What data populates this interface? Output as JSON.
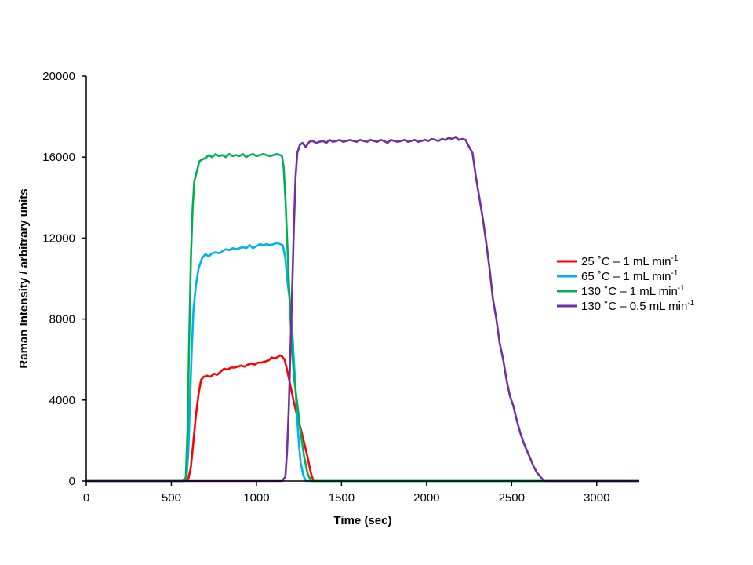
{
  "chart_data": {
    "type": "line",
    "title": "",
    "xlabel": "Time (sec)",
    "ylabel": "Raman Intensity / arbitrary units",
    "xlim": [
      0,
      3250
    ],
    "ylim": [
      0,
      20000
    ],
    "xticks": [
      0,
      500,
      1000,
      1500,
      2000,
      2500,
      3000
    ],
    "yticks": [
      0,
      4000,
      8000,
      12000,
      16000,
      20000
    ],
    "grid": false,
    "legend_position": "right",
    "series": [
      {
        "name": "25 °C – 1 mL min-1",
        "label_main": "25 ˚C – 1 mL min",
        "label_sup": "-1",
        "color": "#ff0000",
        "points": [
          [
            0,
            0
          ],
          [
            560,
            0
          ],
          [
            600,
            100
          ],
          [
            615,
            700
          ],
          [
            630,
            2000
          ],
          [
            645,
            3300
          ],
          [
            660,
            4300
          ],
          [
            675,
            5000
          ],
          [
            690,
            5150
          ],
          [
            710,
            5200
          ],
          [
            730,
            5150
          ],
          [
            750,
            5300
          ],
          [
            770,
            5250
          ],
          [
            790,
            5400
          ],
          [
            810,
            5550
          ],
          [
            830,
            5500
          ],
          [
            850,
            5600
          ],
          [
            870,
            5600
          ],
          [
            890,
            5650
          ],
          [
            910,
            5700
          ],
          [
            930,
            5650
          ],
          [
            950,
            5750
          ],
          [
            970,
            5800
          ],
          [
            990,
            5750
          ],
          [
            1010,
            5850
          ],
          [
            1030,
            5850
          ],
          [
            1050,
            5900
          ],
          [
            1070,
            5950
          ],
          [
            1090,
            6100
          ],
          [
            1110,
            6050
          ],
          [
            1130,
            6150
          ],
          [
            1140,
            6200
          ],
          [
            1150,
            6150
          ],
          [
            1165,
            6000
          ],
          [
            1180,
            5500
          ],
          [
            1200,
            4700
          ],
          [
            1220,
            3900
          ],
          [
            1240,
            3200
          ],
          [
            1260,
            2600
          ],
          [
            1280,
            1900
          ],
          [
            1300,
            1200
          ],
          [
            1320,
            400
          ],
          [
            1335,
            0
          ],
          [
            3250,
            0
          ]
        ]
      },
      {
        "name": "65 °C – 1 mL min-1",
        "label_main": "65 ˚C – 1 mL min",
        "label_sup": "-1",
        "color": "#00b0f0",
        "points": [
          [
            0,
            0
          ],
          [
            575,
            0
          ],
          [
            590,
            200
          ],
          [
            600,
            1500
          ],
          [
            610,
            4000
          ],
          [
            620,
            6500
          ],
          [
            630,
            8500
          ],
          [
            645,
            9700
          ],
          [
            660,
            10500
          ],
          [
            680,
            11000
          ],
          [
            700,
            11200
          ],
          [
            720,
            11100
          ],
          [
            740,
            11250
          ],
          [
            760,
            11300
          ],
          [
            780,
            11250
          ],
          [
            800,
            11350
          ],
          [
            820,
            11450
          ],
          [
            840,
            11400
          ],
          [
            860,
            11500
          ],
          [
            880,
            11450
          ],
          [
            900,
            11500
          ],
          [
            920,
            11550
          ],
          [
            940,
            11500
          ],
          [
            960,
            11650
          ],
          [
            980,
            11500
          ],
          [
            1000,
            11600
          ],
          [
            1020,
            11700
          ],
          [
            1040,
            11650
          ],
          [
            1060,
            11700
          ],
          [
            1080,
            11650
          ],
          [
            1100,
            11700
          ],
          [
            1120,
            11750
          ],
          [
            1140,
            11700
          ],
          [
            1155,
            11650
          ],
          [
            1170,
            11000
          ],
          [
            1180,
            10000
          ],
          [
            1195,
            9000
          ],
          [
            1210,
            7500
          ],
          [
            1220,
            6000
          ],
          [
            1230,
            4500
          ],
          [
            1240,
            3000
          ],
          [
            1250,
            1800
          ],
          [
            1260,
            900
          ],
          [
            1275,
            300
          ],
          [
            1290,
            0
          ],
          [
            3250,
            0
          ]
        ]
      },
      {
        "name": "130 °C – 1 mL min-1",
        "label_main": "130 ˚C – 1 mL min",
        "label_sup": "-1",
        "color": "#00b050",
        "points": [
          [
            0,
            0
          ],
          [
            575,
            0
          ],
          [
            585,
            200
          ],
          [
            595,
            2500
          ],
          [
            605,
            7000
          ],
          [
            615,
            11000
          ],
          [
            625,
            13500
          ],
          [
            635,
            14800
          ],
          [
            650,
            15300
          ],
          [
            665,
            15800
          ],
          [
            685,
            15900
          ],
          [
            700,
            15950
          ],
          [
            720,
            16100
          ],
          [
            740,
            16000
          ],
          [
            760,
            16150
          ],
          [
            780,
            16050
          ],
          [
            800,
            16100
          ],
          [
            820,
            16000
          ],
          [
            840,
            16150
          ],
          [
            860,
            16050
          ],
          [
            880,
            16100
          ],
          [
            900,
            16050
          ],
          [
            920,
            16150
          ],
          [
            940,
            16000
          ],
          [
            960,
            16100
          ],
          [
            980,
            16150
          ],
          [
            1000,
            16050
          ],
          [
            1020,
            16100
          ],
          [
            1040,
            16150
          ],
          [
            1060,
            16100
          ],
          [
            1080,
            16050
          ],
          [
            1100,
            16100
          ],
          [
            1120,
            16150
          ],
          [
            1140,
            16100
          ],
          [
            1150,
            16050
          ],
          [
            1160,
            15500
          ],
          [
            1170,
            14000
          ],
          [
            1180,
            12000
          ],
          [
            1190,
            10000
          ],
          [
            1200,
            8000
          ],
          [
            1210,
            6500
          ],
          [
            1220,
            5200
          ],
          [
            1240,
            3800
          ],
          [
            1260,
            2400
          ],
          [
            1280,
            1200
          ],
          [
            1300,
            400
          ],
          [
            1320,
            0
          ],
          [
            3250,
            0
          ]
        ]
      },
      {
        "name": "130 °C – 0.5 mL min-1",
        "label_main": "130 ˚C – 0.5 mL min",
        "label_sup": "-1",
        "color": "#7030a0",
        "points": [
          [
            0,
            0
          ],
          [
            1150,
            0
          ],
          [
            1170,
            200
          ],
          [
            1180,
            1500
          ],
          [
            1190,
            3500
          ],
          [
            1200,
            6500
          ],
          [
            1210,
            9500
          ],
          [
            1220,
            12500
          ],
          [
            1230,
            15000
          ],
          [
            1240,
            16200
          ],
          [
            1255,
            16600
          ],
          [
            1270,
            16700
          ],
          [
            1290,
            16500
          ],
          [
            1310,
            16750
          ],
          [
            1330,
            16800
          ],
          [
            1350,
            16700
          ],
          [
            1370,
            16750
          ],
          [
            1390,
            16800
          ],
          [
            1410,
            16700
          ],
          [
            1430,
            16850
          ],
          [
            1450,
            16750
          ],
          [
            1470,
            16800
          ],
          [
            1490,
            16850
          ],
          [
            1510,
            16750
          ],
          [
            1530,
            16800
          ],
          [
            1550,
            16850
          ],
          [
            1570,
            16800
          ],
          [
            1590,
            16750
          ],
          [
            1610,
            16850
          ],
          [
            1630,
            16800
          ],
          [
            1650,
            16750
          ],
          [
            1670,
            16850
          ],
          [
            1690,
            16800
          ],
          [
            1710,
            16750
          ],
          [
            1730,
            16850
          ],
          [
            1750,
            16800
          ],
          [
            1770,
            16700
          ],
          [
            1790,
            16850
          ],
          [
            1810,
            16800
          ],
          [
            1830,
            16750
          ],
          [
            1850,
            16800
          ],
          [
            1870,
            16850
          ],
          [
            1890,
            16750
          ],
          [
            1910,
            16800
          ],
          [
            1930,
            16850
          ],
          [
            1950,
            16750
          ],
          [
            1970,
            16800
          ],
          [
            1990,
            16850
          ],
          [
            2010,
            16800
          ],
          [
            2030,
            16900
          ],
          [
            2050,
            16850
          ],
          [
            2070,
            16800
          ],
          [
            2090,
            16900
          ],
          [
            2110,
            16850
          ],
          [
            2130,
            16950
          ],
          [
            2150,
            16900
          ],
          [
            2170,
            17000
          ],
          [
            2190,
            16850
          ],
          [
            2210,
            16900
          ],
          [
            2230,
            16850
          ],
          [
            2250,
            16500
          ],
          [
            2270,
            16200
          ],
          [
            2290,
            15000
          ],
          [
            2310,
            14000
          ],
          [
            2330,
            13000
          ],
          [
            2350,
            11800
          ],
          [
            2370,
            10500
          ],
          [
            2390,
            9000
          ],
          [
            2410,
            8000
          ],
          [
            2430,
            6800
          ],
          [
            2450,
            6000
          ],
          [
            2470,
            5000
          ],
          [
            2490,
            4200
          ],
          [
            2510,
            3700
          ],
          [
            2530,
            3000
          ],
          [
            2550,
            2400
          ],
          [
            2570,
            1900
          ],
          [
            2590,
            1500
          ],
          [
            2610,
            1100
          ],
          [
            2630,
            700
          ],
          [
            2650,
            400
          ],
          [
            2670,
            200
          ],
          [
            2690,
            0
          ],
          [
            3250,
            0
          ]
        ]
      }
    ]
  }
}
